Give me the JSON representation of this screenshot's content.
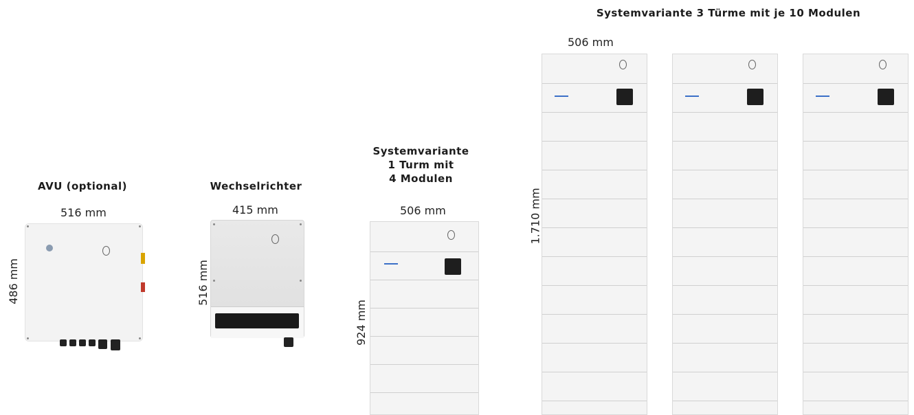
{
  "titles": {
    "avu": "AVU (optional)",
    "inverter": "Wechselrichter",
    "variant1": "Systemvariante\n1 Turm mit\n4 Modulen",
    "variant3": "Systemvariante 3 Türme mit je 10 Modulen"
  },
  "dimensions": {
    "avu_width": "516 mm",
    "avu_height": "486 mm",
    "inverter_width": "415 mm",
    "inverter_height": "516 mm",
    "tower1_width": "506 mm",
    "tower1_height": "924  mm",
    "tower3_width": "506 mm",
    "tower3_height": "1.710  mm"
  },
  "colors": {
    "accent_stripe": "#3a6fc7",
    "handle": "#1e1e1e",
    "cabinet": "#f4f4f4"
  }
}
